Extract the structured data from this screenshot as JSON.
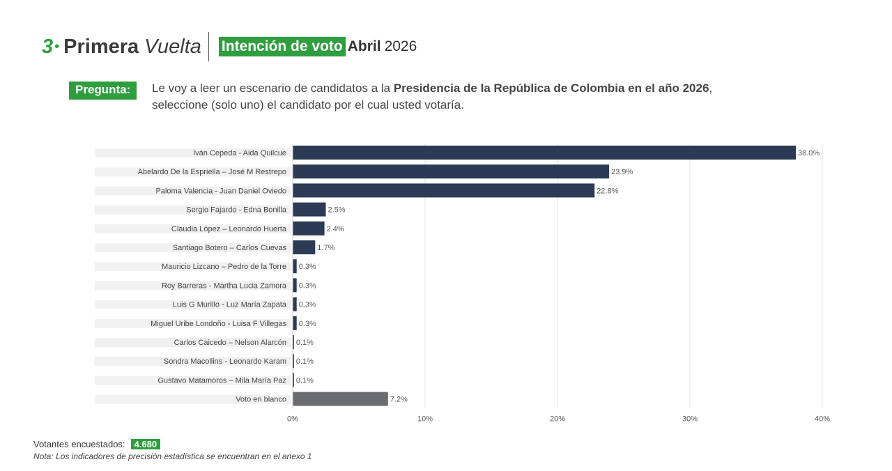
{
  "header": {
    "number": "3",
    "title_bold": "Primera",
    "title_italic": "Vuelta",
    "badge": "Intención de voto",
    "month": "Abril",
    "year": "2026"
  },
  "question": {
    "label": "Pregunta:",
    "text_1": "Le voy a leer un escenario de candidatos a la ",
    "text_bold": "Presidencia de la República de Colombia en el año 2026",
    "text_2": ",",
    "text_3": "seleccione (solo uno) el candidato por el cual usted votaría."
  },
  "footer": {
    "voters_label": "Votantes encuestados:",
    "voters_value": "4.680",
    "note": "Nota: Los indicadores de precisión estadística se encuentran en el anexo 1"
  },
  "colors": {
    "accent": "#2e9e3e",
    "bar": "#2b3a55",
    "blank_bar": "#6b6c70"
  },
  "chart_data": {
    "type": "bar",
    "orientation": "horizontal",
    "categories": [
      "Iván Cepeda - Aida Quilcue",
      "Abelardo De la Espriella – José M Restrepo",
      "Paloma Valencia - Juan Daniel Oviedo",
      "Sergio Fajardo - Edna Bonilla",
      "Claudia López – Leonardo Huerta",
      "Santiago Botero – Carlos Cuevas",
      "Mauricio Lizcano – Pedro de la Torre",
      "Roy Barreras - Martha Lucia Zamora",
      "Luis G Murillo - Luz María Zapata",
      "Miguel Uribe Londoño - Luisa F Villegas",
      "Carlos Caicedo – Nelson Alarcón",
      "Sondra Macollins - Leonardo Karam",
      "Gustavo Matamoros – Mila María Paz",
      "Voto en blanco"
    ],
    "values": [
      38.0,
      23.9,
      22.8,
      2.5,
      2.4,
      1.7,
      0.3,
      0.3,
      0.3,
      0.3,
      0.1,
      0.1,
      0.1,
      7.2
    ],
    "labels": [
      "38.0%",
      "23.9%",
      "22.8%",
      "2.5%",
      "2.4%",
      "1.7%",
      "0.3%",
      "0.3%",
      "0.3%",
      "0.3%",
      "0.1%",
      "0.1%",
      "0.1%",
      "7.2%"
    ],
    "xlim": [
      0,
      40
    ],
    "xticks": [
      0,
      10,
      20,
      30,
      40
    ],
    "xtick_labels": [
      "0%",
      "10%",
      "20%",
      "30%",
      "40%"
    ],
    "grid": true
  }
}
